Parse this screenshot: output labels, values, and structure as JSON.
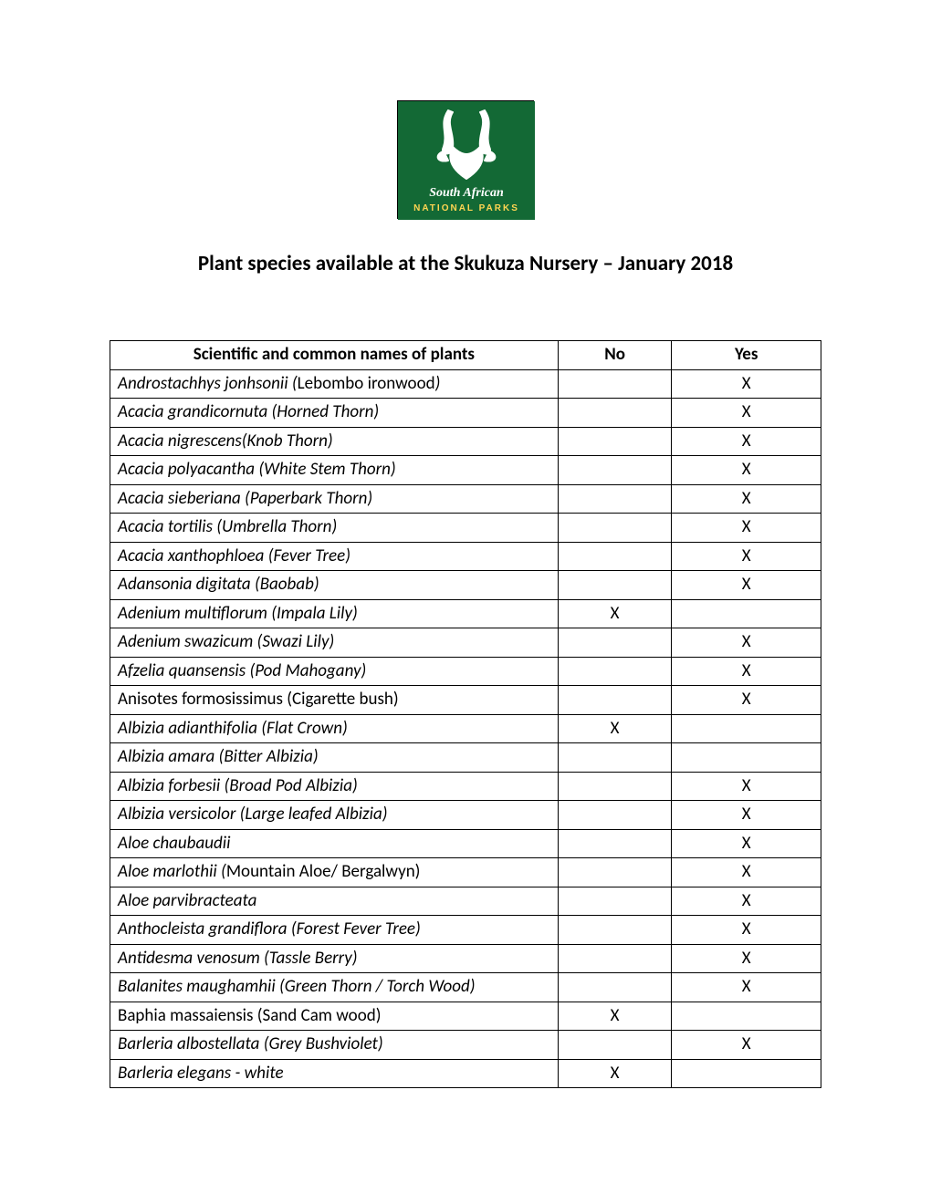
{
  "logo": {
    "line1": "South African",
    "line2": "NATIONAL PARKS",
    "bg_color": "#136935",
    "fg_color": "#ffffff"
  },
  "title": "Plant species available at the Skukuza Nursery – January 2018",
  "table": {
    "columns": {
      "name": "Scientific and common names of plants",
      "no": "No",
      "yes": "Yes"
    },
    "mark": "X",
    "rows": [
      {
        "name_html": "<span class='it'>Androstachhys jonhsonii (</span>Lebombo ironwood<span class='it'>)</span>",
        "no": false,
        "yes": true
      },
      {
        "name_html": "<span class='it'>Acacia grandicornuta (Horned Thorn)</span>",
        "no": false,
        "yes": true
      },
      {
        "name_html": "<span class='it'>Acacia nigrescens(Knob Thorn)</span>",
        "no": false,
        "yes": true
      },
      {
        "name_html": "<span class='it'>Acacia polyacantha (White Stem Thorn)</span>",
        "no": false,
        "yes": true
      },
      {
        "name_html": "<span class='it'>Acacia sieberiana (Paperbark Thorn)</span>",
        "no": false,
        "yes": true
      },
      {
        "name_html": "<span class='it'>Acacia tortilis (Umbrella Thorn)</span>",
        "no": false,
        "yes": true
      },
      {
        "name_html": "<span class='it'>Acacia xanthophloea (Fever Tree)</span>",
        "no": false,
        "yes": true
      },
      {
        "name_html": "<span class='it'>Adansonia digitata (Baobab)</span>",
        "no": false,
        "yes": true
      },
      {
        "name_html": "<span class='it'>Adenium multiflorum (Impala Lily)</span>",
        "no": true,
        "yes": false
      },
      {
        "name_html": "<span class='it'>Adenium swazicum (Swazi Lily)</span>",
        "no": false,
        "yes": true
      },
      {
        "name_html": "<span class='it'>Afzelia quansensis (Pod Mahogany)</span>",
        "no": false,
        "yes": true
      },
      {
        "name_html": "Anisotes formosissimus (Cigarette bush)",
        "no": false,
        "yes": true
      },
      {
        "name_html": "<span class='it'>Albizia adianthifolia (Flat Crown)</span>",
        "no": true,
        "yes": false
      },
      {
        "name_html": "<span class='it'>Albizia amara (Bitter Albizia)</span>",
        "no": false,
        "yes": false
      },
      {
        "name_html": "<span class='it'>Albizia forbesii (Broad Pod Albizia)</span>",
        "no": false,
        "yes": true
      },
      {
        "name_html": "<span class='it'>Albizia versicolor (Large leafed Albizia)</span>",
        "no": false,
        "yes": true
      },
      {
        "name_html": "<span class='it'>Aloe chaubaudii</span>",
        "no": false,
        "yes": true
      },
      {
        "name_html": "<span class='it'>Aloe marlothii (</span>Mountain Aloe/ Bergalwyn)",
        "no": false,
        "yes": true
      },
      {
        "name_html": "<span class='it'>Aloe parvibracteata</span>",
        "no": false,
        "yes": true
      },
      {
        "name_html": "<span class='it'>Anthocleista grandiflora (Forest Fever Tree)</span>",
        "no": false,
        "yes": true
      },
      {
        "name_html": "<span class='it'>Antidesma venosum (Tassle Berry)</span>",
        "no": false,
        "yes": true
      },
      {
        "name_html": "<span class='it'>Balanites maughamhii (Green Thorn / Torch Wood)</span>",
        "no": false,
        "yes": true
      },
      {
        "name_html": "Baphia massaiensis (Sand Cam wood)",
        "no": true,
        "yes": false
      },
      {
        "name_html": "<span class='it'>Barleria albostellata (Grey Bushviolet)</span>",
        "no": false,
        "yes": true
      },
      {
        "name_html": "<span class='it'>Barleria elegans - white</span>",
        "no": true,
        "yes": false
      }
    ]
  }
}
